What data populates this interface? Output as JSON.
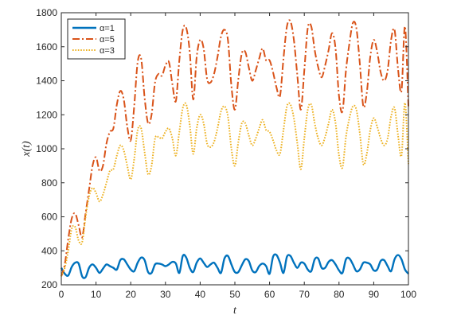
{
  "chart_data": {
    "type": "line",
    "xlabel": "t",
    "ylabel": "x(t)",
    "xlim": [
      0,
      100
    ],
    "ylim": [
      200,
      1800
    ],
    "xticks": [
      "0",
      "10",
      "20",
      "30",
      "40",
      "50",
      "60",
      "70",
      "80",
      "90",
      "100"
    ],
    "yticks": [
      "200",
      "400",
      "600",
      "800",
      "1000",
      "1200",
      "1400",
      "1600",
      "1800"
    ],
    "grid": false,
    "legend_position": "top-left",
    "series": [
      {
        "name": "α=1",
        "color": "#0072BD",
        "style": "solid",
        "x": [
          0,
          1,
          2,
          3,
          4,
          5,
          6,
          7,
          8,
          9,
          10,
          11,
          12,
          13,
          14,
          15,
          16,
          17,
          18,
          19,
          20,
          21,
          22,
          23,
          24,
          25,
          26,
          27,
          28,
          29,
          30,
          31,
          32,
          33,
          34,
          35,
          36,
          37,
          38,
          39,
          40,
          41,
          42,
          43,
          44,
          45,
          46,
          47,
          48,
          49,
          50,
          51,
          52,
          53,
          54,
          55,
          56,
          57,
          58,
          59,
          60,
          61,
          62,
          63,
          64,
          65,
          66,
          67,
          68,
          69,
          70,
          71,
          72,
          73,
          74,
          75,
          76,
          77,
          78,
          79,
          80,
          81,
          82,
          83,
          84,
          85,
          86,
          87,
          88,
          89,
          90,
          91,
          92,
          93,
          94,
          95,
          96,
          97,
          98,
          99,
          100
        ],
        "y": [
          300,
          265,
          255,
          305,
          330,
          325,
          250,
          245,
          300,
          320,
          300,
          270,
          295,
          320,
          310,
          300,
          290,
          345,
          350,
          320,
          290,
          280,
          330,
          360,
          345,
          275,
          270,
          320,
          325,
          320,
          310,
          320,
          335,
          325,
          270,
          370,
          360,
          300,
          275,
          330,
          355,
          330,
          305,
          320,
          330,
          300,
          270,
          355,
          370,
          320,
          275,
          275,
          315,
          350,
          340,
          285,
          275,
          310,
          325,
          310,
          265,
          365,
          375,
          330,
          270,
          365,
          370,
          330,
          300,
          330,
          325,
          290,
          280,
          350,
          355,
          300,
          300,
          335,
          345,
          320,
          285,
          270,
          350,
          355,
          320,
          280,
          290,
          330,
          330,
          320,
          285,
          290,
          340,
          345,
          310,
          280,
          350,
          375,
          350,
          290,
          265
        ]
      },
      {
        "name": "α=5",
        "color": "#D95319",
        "style": "dashdot",
        "x": [
          0,
          1,
          2,
          3,
          4,
          5,
          6,
          7,
          8,
          9,
          10,
          11,
          12,
          13,
          14,
          15,
          16,
          17,
          18,
          19,
          20,
          21,
          22,
          23,
          24,
          25,
          26,
          27,
          28,
          29,
          30,
          31,
          32,
          33,
          34,
          35,
          36,
          37,
          38,
          39,
          40,
          41,
          42,
          43,
          44,
          45,
          46,
          47,
          48,
          49,
          50,
          51,
          52,
          53,
          54,
          55,
          56,
          57,
          58,
          59,
          60,
          61,
          62,
          63,
          64,
          65,
          66,
          67,
          68,
          69,
          70,
          71,
          72,
          73,
          74,
          75,
          76,
          77,
          78,
          79,
          80,
          81,
          82,
          83,
          84,
          85,
          86,
          87,
          88,
          89,
          90,
          91,
          92,
          93,
          94,
          95,
          96,
          97,
          98,
          99,
          100
        ],
        "y": [
          250,
          320,
          470,
          590,
          620,
          550,
          480,
          620,
          760,
          900,
          950,
          870,
          900,
          1030,
          1100,
          1120,
          1260,
          1340,
          1290,
          1130,
          1050,
          1250,
          1510,
          1530,
          1300,
          1150,
          1200,
          1390,
          1440,
          1430,
          1490,
          1510,
          1380,
          1280,
          1520,
          1700,
          1710,
          1570,
          1290,
          1540,
          1640,
          1590,
          1410,
          1390,
          1440,
          1540,
          1660,
          1700,
          1640,
          1370,
          1230,
          1410,
          1560,
          1570,
          1480,
          1400,
          1460,
          1530,
          1590,
          1520,
          1520,
          1450,
          1360,
          1310,
          1530,
          1720,
          1750,
          1640,
          1430,
          1230,
          1460,
          1710,
          1720,
          1580,
          1480,
          1420,
          1490,
          1580,
          1680,
          1590,
          1310,
          1220,
          1460,
          1620,
          1740,
          1710,
          1500,
          1250,
          1330,
          1540,
          1640,
          1570,
          1450,
          1400,
          1460,
          1640,
          1700,
          1470,
          1340,
          1720,
          1250
        ]
      },
      {
        "name": "α=3",
        "color": "#EDB120",
        "style": "dotted",
        "x": [
          0,
          1,
          2,
          3,
          4,
          5,
          6,
          7,
          8,
          9,
          10,
          11,
          12,
          13,
          14,
          15,
          16,
          17,
          18,
          19,
          20,
          21,
          22,
          23,
          24,
          25,
          26,
          27,
          28,
          29,
          30,
          31,
          32,
          33,
          34,
          35,
          36,
          37,
          38,
          39,
          40,
          41,
          42,
          43,
          44,
          45,
          46,
          47,
          48,
          49,
          50,
          51,
          52,
          53,
          54,
          55,
          56,
          57,
          58,
          59,
          60,
          61,
          62,
          63,
          64,
          65,
          66,
          67,
          68,
          69,
          70,
          71,
          72,
          73,
          74,
          75,
          76,
          77,
          78,
          79,
          80,
          81,
          82,
          83,
          84,
          85,
          86,
          87,
          88,
          89,
          90,
          91,
          92,
          93,
          94,
          95,
          96,
          97,
          98,
          99,
          100
        ],
        "y": [
          250,
          300,
          400,
          530,
          540,
          460,
          450,
          600,
          720,
          770,
          740,
          690,
          730,
          800,
          870,
          880,
          960,
          1020,
          990,
          900,
          820,
          940,
          1110,
          1120,
          980,
          850,
          900,
          1060,
          1070,
          1060,
          1100,
          1120,
          1060,
          960,
          1100,
          1240,
          1260,
          1140,
          970,
          1120,
          1200,
          1150,
          1030,
          1010,
          1040,
          1120,
          1220,
          1250,
          1190,
          1000,
          900,
          1040,
          1150,
          1150,
          1080,
          1020,
          1060,
          1120,
          1170,
          1110,
          1100,
          1050,
          990,
          970,
          1110,
          1250,
          1260,
          1180,
          1030,
          880,
          1060,
          1230,
          1260,
          1150,
          1060,
          1020,
          1070,
          1150,
          1230,
          1150,
          960,
          890,
          1070,
          1180,
          1250,
          1230,
          1090,
          910,
          970,
          1110,
          1180,
          1130,
          1060,
          1020,
          1060,
          1190,
          1240,
          1080,
          960,
          1270,
          910
        ]
      }
    ]
  }
}
